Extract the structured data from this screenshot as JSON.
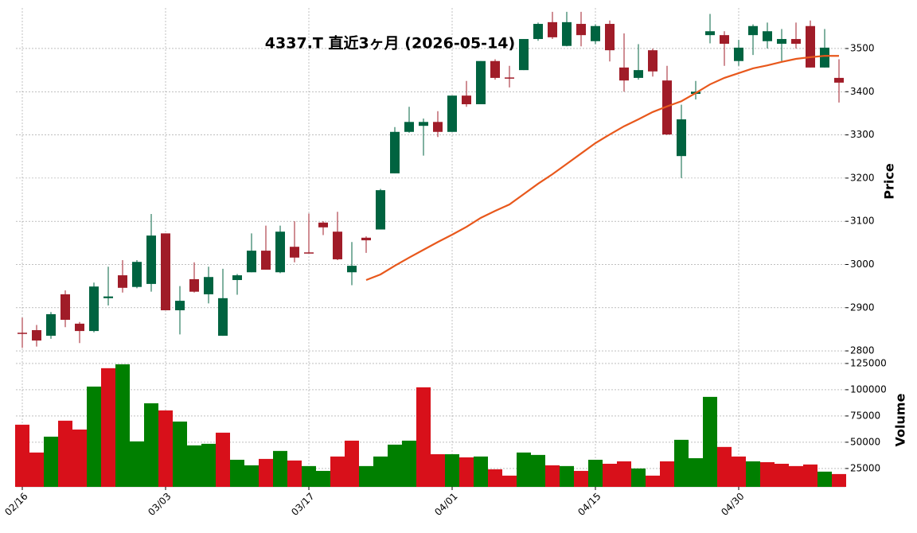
{
  "chart_data": [
    {
      "type": "candlestick",
      "title": "4337.T  直近3ヶ月 (2026-05-14)",
      "ylabel": "Price",
      "open": [
        2842,
        2848,
        2835,
        2931,
        2863,
        2846,
        2922,
        2975,
        2948,
        2955,
        3072,
        2894,
        2966,
        2931,
        2835,
        2964,
        2982,
        3032,
        2982,
        3041,
        3028,
        3097,
        3076,
        2982,
        3062,
        3081,
        3211,
        3307,
        3321,
        3330,
        3307,
        3391,
        3371,
        3471,
        3433,
        3450,
        3522,
        3561,
        3506,
        3557,
        3517,
        3557,
        3456,
        3432,
        3496,
        3426,
        3251,
        3395,
        3531,
        3531,
        3471,
        3531,
        3517,
        3511,
        3522,
        3552,
        3456,
        3432
      ],
      "high": [
        2877,
        2860,
        2890,
        2940,
        2867,
        2958,
        2995,
        3010,
        3010,
        3117,
        3072,
        2950,
        3005,
        2995,
        2990,
        2978,
        3072,
        3090,
        3090,
        3100,
        3118,
        3100,
        3122,
        3052,
        3065,
        3175,
        3318,
        3365,
        3338,
        3355,
        3391,
        3425,
        3471,
        3475,
        3460,
        3522,
        3560,
        3585,
        3585,
        3585,
        3556,
        3565,
        3535,
        3510,
        3500,
        3460,
        3370,
        3425,
        3580,
        3540,
        3520,
        3556,
        3560,
        3545,
        3560,
        3565,
        3545,
        3475
      ],
      "low": [
        2807,
        2810,
        2828,
        2855,
        2818,
        2843,
        2905,
        2935,
        2945,
        2937,
        2894,
        2838,
        2935,
        2910,
        2835,
        2930,
        2982,
        2988,
        2980,
        3005,
        3026,
        3068,
        3010,
        2952,
        3027,
        3081,
        3211,
        3305,
        3252,
        3295,
        3307,
        3365,
        3371,
        3428,
        3410,
        3450,
        3518,
        3522,
        3505,
        3505,
        3510,
        3470,
        3400,
        3428,
        3435,
        3300,
        3200,
        3382,
        3512,
        3460,
        3460,
        3485,
        3500,
        3468,
        3500,
        3456,
        3456,
        3375
      ],
      "close": [
        2840,
        2824,
        2885,
        2872,
        2846,
        2949,
        2926,
        2946,
        3006,
        3067,
        2894,
        2916,
        2937,
        2971,
        2922,
        2975,
        3032,
        2988,
        3076,
        3016,
        3026,
        3086,
        3012,
        2997,
        3056,
        3172,
        3307,
        3330,
        3330,
        3307,
        3391,
        3371,
        3471,
        3432,
        3431,
        3522,
        3557,
        3526,
        3561,
        3531,
        3552,
        3496,
        3426,
        3450,
        3447,
        3301,
        3336,
        3400,
        3540,
        3511,
        3502,
        3552,
        3540,
        3522,
        3511,
        3456,
        3502,
        3421
      ],
      "up_color": "#006340",
      "down_color": "#a01c28",
      "series": [
        {
          "color": "#e8581c",
          "values": [
            null,
            null,
            null,
            null,
            null,
            null,
            null,
            null,
            null,
            null,
            null,
            null,
            null,
            null,
            null,
            null,
            null,
            null,
            null,
            null,
            null,
            null,
            null,
            null,
            2964,
            2977,
            2997,
            3016,
            3034,
            3052,
            3069,
            3087,
            3108,
            3124,
            3139,
            3163,
            3187,
            3209,
            3233,
            3257,
            3281,
            3301,
            3320,
            3336,
            3353,
            3366,
            3378,
            3397,
            3417,
            3432,
            3443,
            3454,
            3461,
            3469,
            3476,
            3480,
            3483,
            3483
          ]
        }
      ],
      "ylim": [
        2790,
        3595
      ],
      "yticks": [
        2800,
        2900,
        3000,
        3100,
        3200,
        3300,
        3400,
        3500
      ],
      "grid": true
    },
    {
      "type": "bar",
      "ylabel": "Volume",
      "categories": [
        "02/16",
        null,
        null,
        null,
        null,
        null,
        null,
        null,
        null,
        null,
        "03/03",
        null,
        null,
        null,
        null,
        null,
        null,
        null,
        null,
        null,
        "03/17",
        null,
        null,
        null,
        null,
        null,
        null,
        null,
        null,
        null,
        "04/01",
        null,
        null,
        null,
        null,
        null,
        null,
        null,
        null,
        null,
        "04/15",
        null,
        null,
        null,
        null,
        null,
        null,
        null,
        null,
        null,
        "04/30",
        null,
        null,
        null,
        null,
        null,
        null,
        null
      ],
      "values": [
        66700,
        40200,
        55300,
        70500,
        62100,
        103000,
        120500,
        124200,
        50800,
        87100,
        80300,
        69700,
        47000,
        48500,
        59100,
        33300,
        28000,
        34100,
        41700,
        32600,
        27300,
        22700,
        36400,
        51500,
        27300,
        36400,
        47700,
        51500,
        102300,
        38600,
        38600,
        35600,
        36400,
        24200,
        18200,
        40200,
        37900,
        28000,
        27300,
        22700,
        33300,
        29500,
        31800,
        25000,
        18200,
        31800,
        52300,
        34800,
        93200,
        45500,
        36400,
        31800,
        31000,
        29500,
        27300,
        28800,
        22000,
        19700
      ],
      "colors": [
        "#d8101a",
        "#d8101a",
        "#007f00",
        "#d8101a",
        "#d8101a",
        "#007f00",
        "#d8101a",
        "#007f00",
        "#007f00",
        "#007f00",
        "#d8101a",
        "#007f00",
        "#007f00",
        "#007f00",
        "#d8101a",
        "#007f00",
        "#007f00",
        "#d8101a",
        "#007f00",
        "#d8101a",
        "#007f00",
        "#007f00",
        "#d8101a",
        "#d8101a",
        "#007f00",
        "#007f00",
        "#007f00",
        "#007f00",
        "#d8101a",
        "#d8101a",
        "#007f00",
        "#d8101a",
        "#007f00",
        "#d8101a",
        "#d8101a",
        "#007f00",
        "#007f00",
        "#d8101a",
        "#007f00",
        "#d8101a",
        "#007f00",
        "#d8101a",
        "#d8101a",
        "#007f00",
        "#d8101a",
        "#d8101a",
        "#007f00",
        "#007f00",
        "#007f00",
        "#d8101a",
        "#d8101a",
        "#007f00",
        "#d8101a",
        "#d8101a",
        "#d8101a",
        "#d8101a",
        "#007f00",
        "#d8101a"
      ],
      "ylim": [
        7500,
        132500
      ],
      "yticks": [
        25000,
        50000,
        75000,
        100000,
        125000
      ],
      "grid": true
    }
  ]
}
